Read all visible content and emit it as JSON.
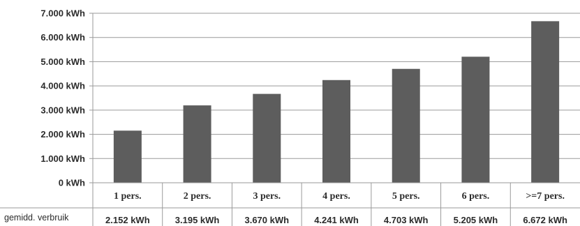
{
  "chart_data": {
    "type": "bar",
    "categories": [
      "1 pers.",
      "2 pers.",
      "3 pers.",
      "4 pers.",
      "5 pers.",
      "6 pers.",
      ">=7 pers."
    ],
    "series": [
      {
        "name": "gemidd. verbruik",
        "values": [
          2152,
          3195,
          3670,
          4241,
          4703,
          5205,
          6672
        ],
        "labels": [
          "2.152 kWh",
          "3.195 kWh",
          "3.670 kWh",
          "4.241 kWh",
          "4.703 kWh",
          "5.205 kWh",
          "6.672 kWh"
        ]
      }
    ],
    "ylim": [
      0,
      7000
    ],
    "yticks": [
      0,
      1000,
      2000,
      3000,
      4000,
      5000,
      6000,
      7000
    ],
    "ytick_labels": [
      "0 kWh",
      "1.000 kWh",
      "2.000 kWh",
      "3.000 kWh",
      "4.000 kWh",
      "5.000 kWh",
      "6.000 kWh",
      "7.000 kWh"
    ],
    "grid": true,
    "legend": "data-table",
    "colors": {
      "bar": "#5d5d5d",
      "grid": "#9a9a9a",
      "text": "#2b2b2b"
    }
  }
}
